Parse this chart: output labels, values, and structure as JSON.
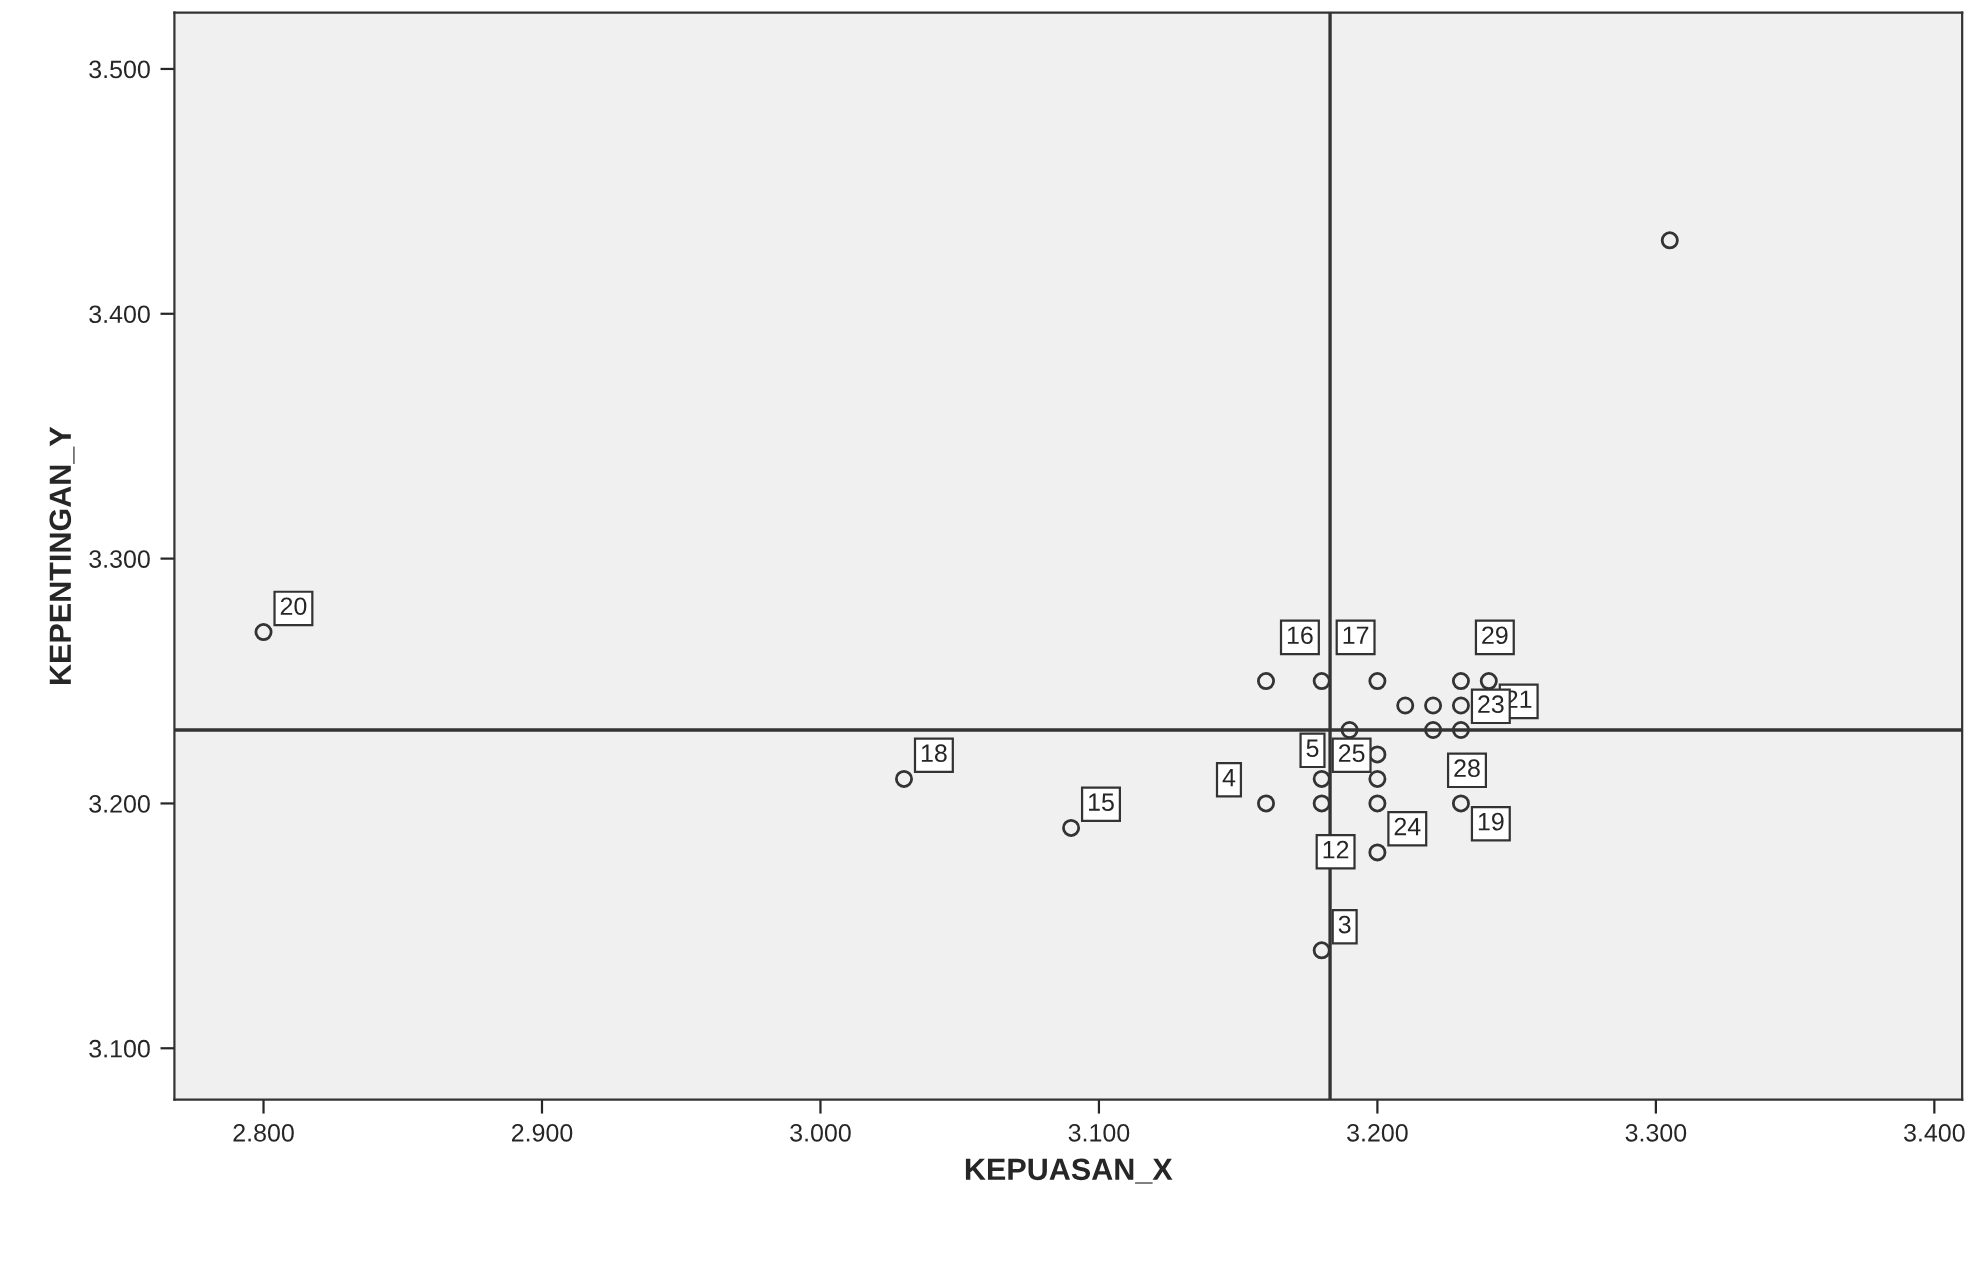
{
  "chart_data": {
    "type": "scatter",
    "xlabel": "KEPUASAN_X",
    "ylabel": "KEPENTINGAN_Y",
    "x": [
      3.305,
      2.8,
      3.03,
      3.09,
      3.16,
      3.18,
      3.2,
      3.23,
      3.24,
      3.21,
      3.22,
      3.23,
      3.19,
      3.22,
      3.23,
      3.2,
      3.18,
      3.2,
      3.16,
      3.18,
      3.2,
      3.23,
      3.2,
      3.18
    ],
    "series": [
      {
        "color": "#333333",
        "values": [
          3.43,
          3.27,
          3.21,
          3.19,
          3.25,
          3.25,
          3.25,
          3.25,
          3.25,
          3.24,
          3.24,
          3.24,
          3.23,
          3.23,
          3.23,
          3.22,
          3.21,
          3.21,
          3.2,
          3.2,
          3.2,
          3.2,
          3.18,
          3.14
        ]
      }
    ],
    "xlim": [
      2.768,
      3.41
    ],
    "ylim": [
      3.079,
      3.523
    ],
    "xticks": [
      {
        "value": 2.8,
        "label": "2.800"
      },
      {
        "value": 2.9,
        "label": "2.900"
      },
      {
        "value": 3.0,
        "label": "3.000"
      },
      {
        "value": 3.1,
        "label": "3.100"
      },
      {
        "value": 3.2,
        "label": "3.200"
      },
      {
        "value": 3.3,
        "label": "3.300"
      },
      {
        "value": 3.4,
        "label": "3.400"
      }
    ],
    "yticks": [
      {
        "value": 3.1,
        "label": "3.100"
      },
      {
        "value": 3.2,
        "label": "3.200"
      },
      {
        "value": 3.3,
        "label": "3.300"
      },
      {
        "value": 3.4,
        "label": "3.400"
      },
      {
        "value": 3.5,
        "label": "3.500"
      }
    ],
    "ref_lines": [
      {
        "axis": "x",
        "value": 3.183,
        "color": "#333333"
      },
      {
        "axis": "y",
        "value": 3.23,
        "color": "#333333"
      }
    ],
    "annotations": [
      {
        "text": "20",
        "x": 2.8,
        "y": 3.27
      },
      {
        "text": "18",
        "x": 3.03,
        "y": 3.21
      },
      {
        "text": "15",
        "x": 3.09,
        "y": 3.19
      },
      {
        "text": "16",
        "x": 3.16,
        "y": 3.25
      },
      {
        "text": "17",
        "x": 3.18,
        "y": 3.25
      },
      {
        "text": "29",
        "x": 3.23,
        "y": 3.25
      },
      {
        "text": "21",
        "x": 3.24,
        "y": 3.25
      },
      {
        "text": "28",
        "x": 3.22,
        "y": 3.23
      },
      {
        "text": "23",
        "x": 3.23,
        "y": 3.23
      },
      {
        "text": "5",
        "x": 3.19,
        "y": 3.23
      },
      {
        "text": "4",
        "x": 3.16,
        "y": 3.2
      },
      {
        "text": "25",
        "x": 3.18,
        "y": 3.21
      },
      {
        "text": "12",
        "x": 3.18,
        "y": 3.2
      },
      {
        "text": "19",
        "x": 3.23,
        "y": 3.2
      },
      {
        "text": "24",
        "x": 3.2,
        "y": 3.18
      },
      {
        "text": "3",
        "x": 3.18,
        "y": 3.14
      }
    ],
    "marker": "circle",
    "grid": false,
    "legend": false
  }
}
